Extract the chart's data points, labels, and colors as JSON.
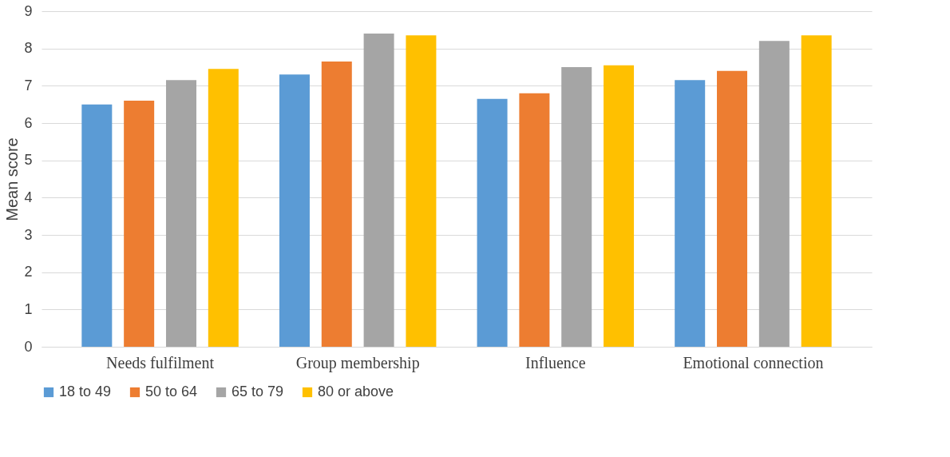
{
  "chart_data": {
    "type": "bar",
    "ylabel": "Mean score",
    "categories": [
      "Needs fulfilment",
      "Group membership",
      "Influence",
      "Emotional connection"
    ],
    "series": [
      {
        "name": "18 to 49",
        "color": "#5b9bd5",
        "values": [
          6.5,
          7.3,
          6.65,
          7.15
        ]
      },
      {
        "name": "50 to 64",
        "color": "#ed7d31",
        "values": [
          6.6,
          7.65,
          6.8,
          7.4
        ]
      },
      {
        "name": "65 to 79",
        "color": "#a5a5a5",
        "values": [
          7.15,
          8.4,
          7.5,
          8.2
        ]
      },
      {
        "name": "80 or above",
        "color": "#ffc000",
        "values": [
          7.45,
          8.35,
          7.55,
          8.35
        ]
      }
    ],
    "ylim": [
      0,
      9
    ],
    "yticks": [
      0,
      1,
      2,
      3,
      4,
      5,
      6,
      7,
      8,
      9
    ],
    "grid": "y",
    "legend": "bottom"
  }
}
